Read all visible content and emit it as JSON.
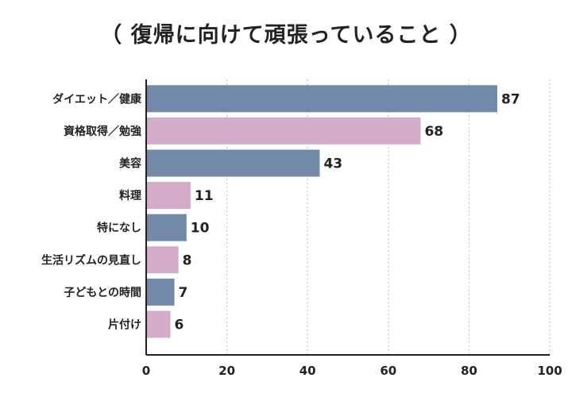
{
  "chart_data": {
    "type": "bar",
    "orientation": "horizontal",
    "title": "（ 復帰に向けて頑張っていること ）",
    "categories": [
      "ダイエット／健康",
      "資格取得／勉強",
      "美容",
      "料理",
      "特になし",
      "生活リズムの見直し",
      "子どもとの時間",
      "片付け"
    ],
    "values": [
      87,
      68,
      43,
      11,
      10,
      8,
      7,
      6
    ],
    "bar_colors": [
      "#7389aa",
      "#d5abca",
      "#7389aa",
      "#d5abca",
      "#7389aa",
      "#d5abca",
      "#7389aa",
      "#d5abca"
    ],
    "xlim": [
      0,
      100
    ],
    "xticks": [
      0,
      20,
      40,
      60,
      80,
      100
    ],
    "grid": "vertical dotted",
    "xlabel": "",
    "ylabel": ""
  }
}
